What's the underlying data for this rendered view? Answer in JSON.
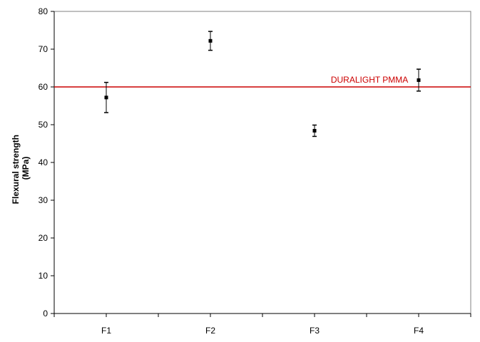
{
  "chart_data": {
    "type": "scatter",
    "title": "",
    "xlabel": "",
    "ylabel": "Flexural strength (MPa)",
    "ylabel_lines": [
      "Flexural strength",
      "(MPa)"
    ],
    "ylim": [
      0,
      80
    ],
    "yticks": [
      0,
      10,
      20,
      30,
      40,
      50,
      60,
      70,
      80
    ],
    "categories": [
      "F1",
      "F2",
      "F3",
      "F4"
    ],
    "series": [
      {
        "values": [
          57.2,
          72.2,
          48.4,
          61.8
        ],
        "err_low": [
          53.2,
          69.7,
          46.9,
          58.9
        ],
        "err_high": [
          61.2,
          74.7,
          49.9,
          64.7
        ]
      }
    ],
    "reference_line": {
      "label": "DURALIGHT PMMA",
      "value": 60,
      "color": "#cc0000"
    },
    "grid": false,
    "colors": {
      "marker": "#000000",
      "axis": "#000000",
      "frame": "#808080"
    }
  }
}
